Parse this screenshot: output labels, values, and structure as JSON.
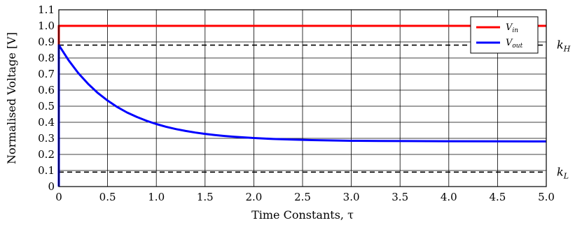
{
  "chart_data": {
    "type": "line",
    "xlabel": "Time Constants, τ",
    "ylabel": "Normalised Voltage [V]",
    "xlim": [
      0,
      5.0
    ],
    "ylim": [
      0,
      1.1
    ],
    "xticks": [
      0,
      0.5,
      1.0,
      1.5,
      2.0,
      2.5,
      3.0,
      3.5,
      4.0,
      4.5,
      5.0
    ],
    "xtick_labels": [
      "0",
      "0.5",
      "1.0",
      "1.5",
      "2.0",
      "2.5",
      "3.0",
      "3.5",
      "4.0",
      "4.5",
      "5.0"
    ],
    "yticks": [
      0,
      0.1,
      0.2,
      0.3,
      0.4,
      0.5,
      0.6,
      0.7,
      0.8,
      0.9,
      1.0,
      1.1
    ],
    "ytick_labels": [
      "0",
      "0.1",
      "0.2",
      "0.3",
      "0.4",
      "0.5",
      "0.6",
      "0.7",
      "0.8",
      "0.9",
      "1.0",
      "1.1"
    ],
    "grid": true,
    "legend_position": "top-right",
    "series": [
      {
        "name": "V_in",
        "legend_main": "V",
        "legend_sub": "in",
        "color": "#ff0000",
        "points": [
          [
            0,
            0.88
          ],
          [
            0,
            1.0
          ],
          [
            5.0,
            1.0
          ]
        ]
      },
      {
        "name": "V_out",
        "legend_main": "V",
        "legend_sub": "out",
        "color": "#0000ff",
        "points": [
          [
            0,
            0.0
          ],
          [
            0,
            0.88
          ],
          [
            0.1,
            0.786
          ],
          [
            0.2,
            0.706
          ],
          [
            0.3,
            0.639
          ],
          [
            0.4,
            0.582
          ],
          [
            0.5,
            0.535
          ],
          [
            0.6,
            0.495
          ],
          [
            0.7,
            0.461
          ],
          [
            0.8,
            0.433
          ],
          [
            0.9,
            0.409
          ],
          [
            1.0,
            0.389
          ],
          [
            1.1,
            0.372
          ],
          [
            1.2,
            0.358
          ],
          [
            1.3,
            0.346
          ],
          [
            1.4,
            0.336
          ],
          [
            1.5,
            0.328
          ],
          [
            1.6,
            0.321
          ],
          [
            1.7,
            0.315
          ],
          [
            1.8,
            0.31
          ],
          [
            1.9,
            0.306
          ],
          [
            2.0,
            0.302
          ],
          [
            2.2,
            0.296
          ],
          [
            2.4,
            0.292
          ],
          [
            2.6,
            0.289
          ],
          [
            2.8,
            0.287
          ],
          [
            3.0,
            0.285
          ],
          [
            3.3,
            0.284
          ],
          [
            3.6,
            0.283
          ],
          [
            4.0,
            0.282
          ],
          [
            4.5,
            0.2815
          ],
          [
            5.0,
            0.281
          ]
        ]
      }
    ],
    "reference_lines": [
      {
        "y": 0.88,
        "style": "dashed",
        "color": "#000000",
        "label_main": "k",
        "label_sub": "H"
      },
      {
        "y": 0.09,
        "style": "dashed",
        "color": "#000000",
        "label_main": "k",
        "label_sub": "L"
      }
    ]
  }
}
